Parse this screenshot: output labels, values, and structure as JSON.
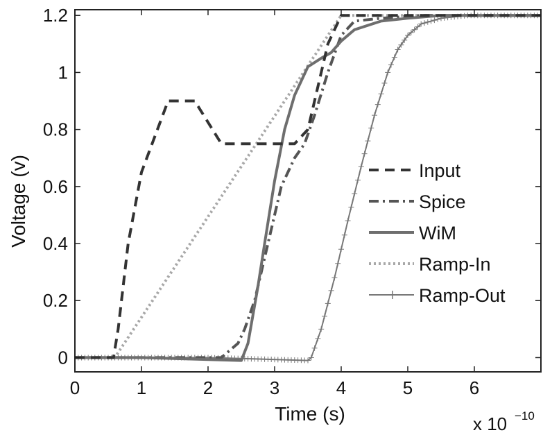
{
  "chart_data": {
    "type": "line",
    "title": "",
    "xlabel": "Time (s)",
    "ylabel": "Voltage (v)",
    "x_multiplier": {
      "base": "x 10",
      "exponent": "−10"
    },
    "xlim": [
      0,
      7
    ],
    "ylim": [
      -0.05,
      1.22
    ],
    "x_ticks": [
      0,
      1,
      2,
      3,
      4,
      5,
      6
    ],
    "x_tick_labels": [
      "0",
      "1",
      "2",
      "3",
      "4",
      "5",
      "6"
    ],
    "y_ticks": [
      0,
      0.2,
      0.4,
      0.6,
      0.8,
      1.0,
      1.2
    ],
    "y_tick_labels": [
      "0",
      "0.2",
      "0.4",
      "0.6",
      "0.8",
      "1",
      "1.2"
    ],
    "grid": false,
    "legend_position": "right",
    "series": [
      {
        "name": "Input",
        "color": "#333333",
        "style": "dashed",
        "x": [
          0,
          0.58,
          0.65,
          0.8,
          1.0,
          1.4,
          1.8,
          2.2,
          2.5,
          3.3,
          3.5,
          3.8,
          4.0,
          7.0
        ],
        "y": [
          0,
          0,
          0.1,
          0.4,
          0.65,
          0.9,
          0.9,
          0.75,
          0.75,
          0.75,
          0.8,
          1.1,
          1.2,
          1.2
        ]
      },
      {
        "name": "Spice",
        "color": "#555555",
        "style": "dashdot",
        "x": [
          0,
          2.2,
          2.45,
          2.55,
          2.7,
          2.9,
          3.1,
          3.3,
          3.45,
          3.6,
          3.8,
          4.0,
          4.2,
          4.6,
          5.2,
          7.0
        ],
        "y": [
          0,
          0,
          0.05,
          0.1,
          0.2,
          0.4,
          0.6,
          0.7,
          0.75,
          0.85,
          1.0,
          1.13,
          1.18,
          1.19,
          1.2,
          1.2
        ]
      },
      {
        "name": "WiM",
        "color": "#6e6e6e",
        "style": "solid",
        "x": [
          0,
          1.0,
          2.5,
          2.6,
          2.75,
          2.85,
          3.0,
          3.15,
          3.3,
          3.5,
          3.7,
          3.85,
          4.0,
          4.2,
          4.6,
          5.0,
          5.5,
          7.0
        ],
        "y": [
          0,
          0,
          -0.01,
          0.05,
          0.25,
          0.4,
          0.62,
          0.8,
          0.92,
          1.02,
          1.05,
          1.07,
          1.11,
          1.15,
          1.18,
          1.19,
          1.2,
          1.2
        ]
      },
      {
        "name": "Ramp-In",
        "color": "#a8a8a8",
        "style": "dotted",
        "x": [
          0,
          0.6,
          4.0,
          7.0
        ],
        "y": [
          0,
          0,
          1.2,
          1.2
        ]
      },
      {
        "name": "Ramp-Out",
        "color": "#777777",
        "style": "solid-plus",
        "x": [
          0,
          2.0,
          3.5,
          3.55,
          3.7,
          3.9,
          4.1,
          4.3,
          4.5,
          4.7,
          4.85,
          5.0,
          5.2,
          5.5,
          5.9,
          6.3,
          7.0
        ],
        "y": [
          0,
          0,
          -0.01,
          0.0,
          0.1,
          0.28,
          0.48,
          0.67,
          0.85,
          1.0,
          1.08,
          1.13,
          1.17,
          1.19,
          1.2,
          1.2,
          1.2
        ]
      }
    ]
  }
}
